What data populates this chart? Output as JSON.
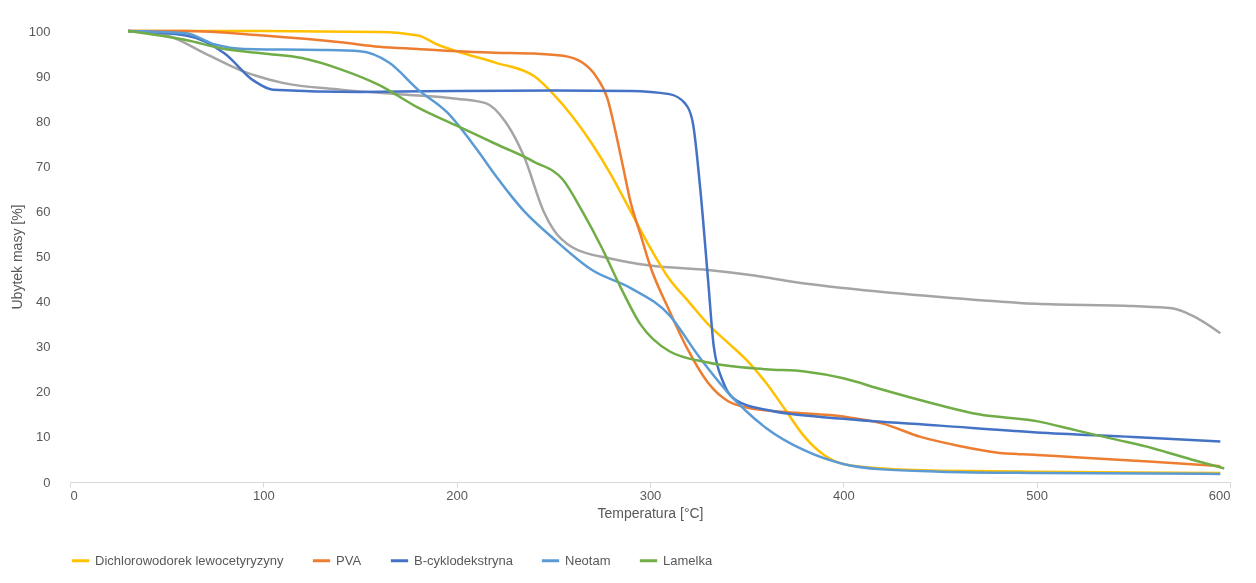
{
  "chart_data": {
    "type": "line",
    "xlabel": "Temperatura [°C]",
    "ylabel": "Ubytek masy [%]",
    "xlim": [
      0,
      600
    ],
    "ylim": [
      0,
      100
    ],
    "xticks": [
      0,
      100,
      200,
      300,
      400,
      500,
      600
    ],
    "yticks": [
      0,
      10,
      20,
      30,
      40,
      50,
      60,
      70,
      80,
      90,
      100
    ],
    "grid": false,
    "legend": "bottom",
    "marker": "none",
    "line_style": "solid",
    "series": [
      {
        "name": "Dichlorowodorek lewocetyryzyny",
        "color": "#ffc000",
        "x": [
          30,
          60,
          100,
          160,
          180,
          190,
          200,
          220,
          240,
          250,
          260,
          270,
          280,
          290,
          300,
          310,
          320,
          330,
          340,
          350,
          360,
          370,
          380,
          390,
          400,
          420,
          450,
          500,
          550,
          595
        ],
        "values": [
          100,
          100,
          100,
          99.8,
          99,
          97,
          95.5,
          93,
          90,
          86,
          81,
          75,
          68,
          60,
          52,
          45,
          40,
          35,
          31,
          27,
          22,
          16,
          10,
          6,
          4,
          3,
          2.5,
          2.3,
          2.1,
          2
        ]
      },
      {
        "name": "PVA",
        "color": "#ed7d31",
        "x": [
          30,
          60,
          100,
          140,
          160,
          180,
          200,
          220,
          240,
          255,
          265,
          272,
          278,
          282,
          286,
          290,
          295,
          300,
          310,
          320,
          330,
          340,
          350,
          370,
          400,
          420,
          440,
          460,
          480,
          500,
          520,
          560,
          595
        ],
        "values": [
          100,
          100,
          99,
          97.5,
          96.5,
          96,
          95.5,
          95.2,
          95,
          94.5,
          93,
          90,
          85,
          78,
          70,
          62,
          55,
          48,
          38,
          29,
          22,
          18,
          16.5,
          15.5,
          14.5,
          13,
          10,
          8,
          6.5,
          6,
          5.5,
          4.5,
          3.5
        ]
      },
      {
        "color": "#a5a5a5",
        "x": [
          30,
          50,
          70,
          90,
          110,
          140,
          170,
          200,
          215,
          225,
          235,
          245,
          250,
          260,
          280,
          300,
          330,
          350,
          380,
          400,
          450,
          500,
          550,
          570,
          580,
          595
        ],
        "values": [
          100,
          99,
          95,
          91,
          88.5,
          87,
          86,
          85,
          84,
          80,
          72,
          60,
          56,
          52,
          49.5,
          48,
          47,
          46,
          44,
          43,
          41,
          39.5,
          39,
          38.5,
          37,
          33
        ]
      },
      {
        "name": "B-cyklodekstryna",
        "color": "#4472c4",
        "x": [
          30,
          60,
          80,
          95,
          105,
          150,
          200,
          250,
          290,
          310,
          318,
          322,
          326,
          330,
          333,
          338,
          345,
          360,
          400,
          450,
          500,
          550,
          595
        ],
        "values": [
          100,
          99,
          95,
          89,
          87,
          86.5,
          86.7,
          86.8,
          86.7,
          86,
          84,
          80,
          65,
          45,
          30,
          22,
          18,
          16,
          14,
          12.5,
          11,
          10,
          9
        ]
      },
      {
        "name": "Neotam",
        "color": "#5b9bd5",
        "x": [
          30,
          60,
          75,
          90,
          130,
          150,
          165,
          180,
          195,
          210,
          220,
          235,
          250,
          270,
          290,
          310,
          325,
          340,
          360,
          380,
          400,
          420,
          450,
          500,
          595
        ],
        "values": [
          100,
          99.5,
          97,
          96,
          95.8,
          95.5,
          93,
          87,
          82,
          74,
          68,
          60,
          54,
          47,
          43,
          37,
          28,
          20,
          12,
          7,
          4,
          2.8,
          2.3,
          2,
          1.8
        ]
      },
      {
        "name": "Lamelka",
        "color": "#70ad47",
        "x": [
          30,
          60,
          80,
          100,
          120,
          140,
          160,
          180,
          200,
          220,
          240,
          255,
          265,
          275,
          285,
          295,
          310,
          330,
          360,
          380,
          400,
          420,
          450,
          470,
          500,
          520,
          540,
          560,
          580,
          597
        ],
        "values": [
          100,
          98,
          96,
          95,
          94,
          91.5,
          88,
          83,
          79,
          75,
          71,
          67,
          60,
          52,
          43,
          35,
          29,
          26.5,
          25,
          24.5,
          23,
          20.5,
          17,
          15,
          13.5,
          11.5,
          9.5,
          7.5,
          5,
          3
        ]
      }
    ]
  }
}
